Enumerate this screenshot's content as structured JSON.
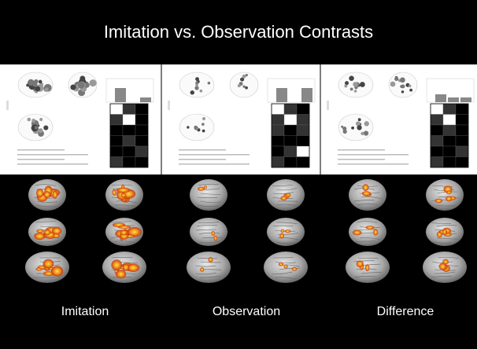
{
  "header": {
    "title": "Imitation vs. Observation Contrasts"
  },
  "panels": [
    {
      "label": "Imitation"
    },
    {
      "label": "Observation"
    },
    {
      "label": "Difference"
    }
  ]
}
